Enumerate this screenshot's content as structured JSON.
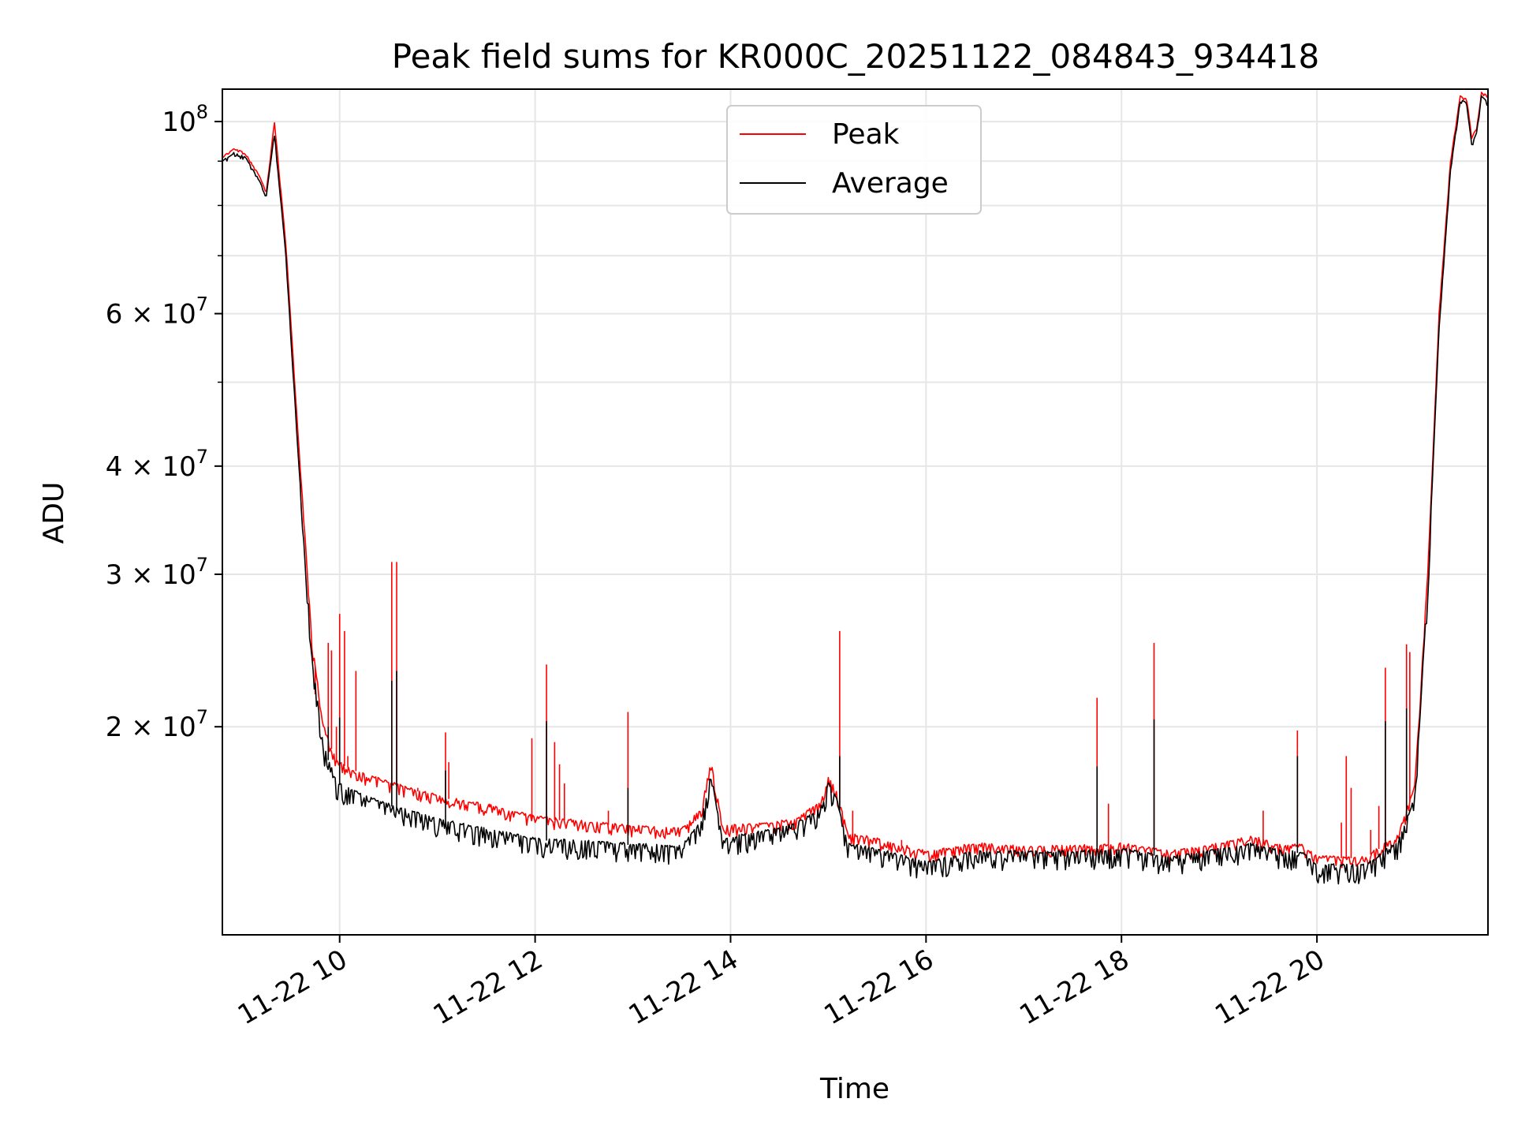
{
  "chart_data": {
    "type": "line",
    "title": "Peak field sums for KR000C_20251122_084843_934418",
    "xlabel": "Time",
    "ylabel": "ADU",
    "yscale": "log",
    "xlim": [
      "2025-11-22 08:48",
      "2025-11-22 21:45"
    ],
    "ylim": [
      11500000,
      109000000
    ],
    "grid": true,
    "legend_placement": "upper-center",
    "x_ticks": [
      {
        "value": "2025-11-22 10:00",
        "label": "11-22 10"
      },
      {
        "value": "2025-11-22 12:00",
        "label": "11-22 12"
      },
      {
        "value": "2025-11-22 14:00",
        "label": "11-22 14"
      },
      {
        "value": "2025-11-22 16:00",
        "label": "11-22 16"
      },
      {
        "value": "2025-11-22 18:00",
        "label": "11-22 18"
      },
      {
        "value": "2025-11-22 20:00",
        "label": "11-22 20"
      }
    ],
    "y_ticks": [
      {
        "value": 20000000,
        "mantissa": "2",
        "exp": "7"
      },
      {
        "value": 30000000,
        "mantissa": "3",
        "exp": "7"
      },
      {
        "value": 40000000,
        "mantissa": "4",
        "exp": "7"
      },
      {
        "value": 60000000,
        "mantissa": "6",
        "exp": "7"
      },
      {
        "value": 100000000,
        "mantissa": "",
        "exp": "8"
      }
    ],
    "y_minor_ticks": [
      50000000,
      70000000,
      80000000,
      90000000
    ],
    "series": [
      {
        "name": "Peak",
        "color": "#ff0000",
        "points": [
          [
            "2025-11-22 08:48",
            91000000
          ],
          [
            "2025-11-22 08:55",
            93000000
          ],
          [
            "2025-11-22 09:02",
            92000000
          ],
          [
            "2025-11-22 09:10",
            87000000
          ],
          [
            "2025-11-22 09:15",
            83000000
          ],
          [
            "2025-11-22 09:20",
            100000000
          ],
          [
            "2025-11-22 09:27",
            72000000
          ],
          [
            "2025-11-22 09:35",
            42000000
          ],
          [
            "2025-11-22 09:43",
            25000000
          ],
          [
            "2025-11-22 09:50",
            20000000
          ],
          [
            "2025-11-22 09:58",
            18200000
          ],
          [
            "2025-11-22 10:15",
            17600000
          ],
          [
            "2025-11-22 10:35",
            17100000
          ],
          [
            "2025-11-22 11:00",
            16600000
          ],
          [
            "2025-11-22 11:30",
            16200000
          ],
          [
            "2025-11-22 12:00",
            15700000
          ],
          [
            "2025-11-22 12:30",
            15500000
          ],
          [
            "2025-11-22 13:00",
            15300000
          ],
          [
            "2025-11-22 13:30",
            15200000
          ],
          [
            "2025-11-22 13:42",
            16000000
          ],
          [
            "2025-11-22 13:48",
            18200000
          ],
          [
            "2025-11-22 13:55",
            15300000
          ],
          [
            "2025-11-22 14:20",
            15400000
          ],
          [
            "2025-11-22 14:40",
            15600000
          ],
          [
            "2025-11-22 14:55",
            16300000
          ],
          [
            "2025-11-22 15:00",
            17400000
          ],
          [
            "2025-11-22 15:05",
            16800000
          ],
          [
            "2025-11-22 15:12",
            15000000
          ],
          [
            "2025-11-22 15:30",
            14800000
          ],
          [
            "2025-11-22 16:00",
            14300000
          ],
          [
            "2025-11-22 16:30",
            14600000
          ],
          [
            "2025-11-22 17:00",
            14500000
          ],
          [
            "2025-11-22 17:30",
            14500000
          ],
          [
            "2025-11-22 18:00",
            14600000
          ],
          [
            "2025-11-22 18:30",
            14300000
          ],
          [
            "2025-11-22 19:00",
            14600000
          ],
          [
            "2025-11-22 19:20",
            14900000
          ],
          [
            "2025-11-22 19:40",
            14500000
          ],
          [
            "2025-11-22 19:50",
            14600000
          ],
          [
            "2025-11-22 20:00",
            14100000
          ],
          [
            "2025-11-22 20:30",
            14100000
          ],
          [
            "2025-11-22 20:50",
            15000000
          ],
          [
            "2025-11-22 21:00",
            17000000
          ],
          [
            "2025-11-22 21:08",
            30000000
          ],
          [
            "2025-11-22 21:15",
            60000000
          ],
          [
            "2025-11-22 21:22",
            90000000
          ],
          [
            "2025-11-22 21:28",
            107000000
          ],
          [
            "2025-11-22 21:32",
            106000000
          ],
          [
            "2025-11-22 21:35",
            96000000
          ],
          [
            "2025-11-22 21:38",
            98000000
          ],
          [
            "2025-11-22 21:41",
            108000000
          ],
          [
            "2025-11-22 21:45",
            107000000
          ]
        ],
        "spikes": [
          [
            "2025-11-22 09:45",
            21800000
          ],
          [
            "2025-11-22 09:53",
            25000000
          ],
          [
            "2025-11-22 09:55",
            24500000
          ],
          [
            "2025-11-22 09:58",
            20000000
          ],
          [
            "2025-11-22 10:00",
            27000000
          ],
          [
            "2025-11-22 10:03",
            25800000
          ],
          [
            "2025-11-22 10:05",
            18500000
          ],
          [
            "2025-11-22 10:10",
            23200000
          ],
          [
            "2025-11-22 10:32",
            31000000
          ],
          [
            "2025-11-22 10:35",
            31000000
          ],
          [
            "2025-11-22 10:48",
            17000000
          ],
          [
            "2025-11-22 11:05",
            19700000
          ],
          [
            "2025-11-22 11:07",
            18200000
          ],
          [
            "2025-11-22 11:32",
            16300000
          ],
          [
            "2025-11-22 11:58",
            19400000
          ],
          [
            "2025-11-22 12:07",
            23600000
          ],
          [
            "2025-11-22 12:12",
            19200000
          ],
          [
            "2025-11-22 12:15",
            18100000
          ],
          [
            "2025-11-22 12:18",
            17200000
          ],
          [
            "2025-11-22 12:45",
            16000000
          ],
          [
            "2025-11-22 12:57",
            20800000
          ],
          [
            "2025-11-22 15:07",
            25800000
          ],
          [
            "2025-11-22 15:15",
            16000000
          ],
          [
            "2025-11-22 15:45",
            14800000
          ],
          [
            "2025-11-22 17:45",
            21600000
          ],
          [
            "2025-11-22 17:52",
            16300000
          ],
          [
            "2025-11-22 18:20",
            25000000
          ],
          [
            "2025-11-22 19:27",
            16000000
          ],
          [
            "2025-11-22 19:48",
            19800000
          ],
          [
            "2025-11-22 20:15",
            15500000
          ],
          [
            "2025-11-22 20:18",
            18500000
          ],
          [
            "2025-11-22 20:21",
            17000000
          ],
          [
            "2025-11-22 20:33",
            15200000
          ],
          [
            "2025-11-22 20:38",
            16200000
          ],
          [
            "2025-11-22 20:42",
            23400000
          ],
          [
            "2025-11-22 20:55",
            24900000
          ],
          [
            "2025-11-22 20:57",
            24400000
          ]
        ]
      },
      {
        "name": "Average",
        "color": "#000000",
        "points": [
          [
            "2025-11-22 08:48",
            90000000
          ],
          [
            "2025-11-22 08:55",
            92000000
          ],
          [
            "2025-11-22 09:02",
            91000000
          ],
          [
            "2025-11-22 09:10",
            86000000
          ],
          [
            "2025-11-22 09:15",
            82000000
          ],
          [
            "2025-11-22 09:20",
            97000000
          ],
          [
            "2025-11-22 09:27",
            70000000
          ],
          [
            "2025-11-22 09:35",
            40000000
          ],
          [
            "2025-11-22 09:43",
            24000000
          ],
          [
            "2025-11-22 09:50",
            19000000
          ],
          [
            "2025-11-22 09:58",
            17200000
          ],
          [
            "2025-11-22 10:15",
            16600000
          ],
          [
            "2025-11-22 10:35",
            16100000
          ],
          [
            "2025-11-22 11:00",
            15600000
          ],
          [
            "2025-11-22 11:30",
            15200000
          ],
          [
            "2025-11-22 12:00",
            14800000
          ],
          [
            "2025-11-22 12:30",
            14700000
          ],
          [
            "2025-11-22 13:00",
            14600000
          ],
          [
            "2025-11-22 13:30",
            14500000
          ],
          [
            "2025-11-22 13:42",
            15500000
          ],
          [
            "2025-11-22 13:48",
            17600000
          ],
          [
            "2025-11-22 13:55",
            14800000
          ],
          [
            "2025-11-22 14:20",
            15100000
          ],
          [
            "2025-11-22 14:40",
            15400000
          ],
          [
            "2025-11-22 14:55",
            16000000
          ],
          [
            "2025-11-22 15:00",
            17200000
          ],
          [
            "2025-11-22 15:05",
            16500000
          ],
          [
            "2025-11-22 15:12",
            14600000
          ],
          [
            "2025-11-22 15:30",
            14400000
          ],
          [
            "2025-11-22 16:00",
            13900000
          ],
          [
            "2025-11-22 16:30",
            14300000
          ],
          [
            "2025-11-22 17:00",
            14300000
          ],
          [
            "2025-11-22 17:30",
            14300000
          ],
          [
            "2025-11-22 18:00",
            14400000
          ],
          [
            "2025-11-22 18:30",
            14100000
          ],
          [
            "2025-11-22 19:00",
            14400000
          ],
          [
            "2025-11-22 19:20",
            14600000
          ],
          [
            "2025-11-22 19:40",
            14300000
          ],
          [
            "2025-11-22 19:50",
            14300000
          ],
          [
            "2025-11-22 20:00",
            13800000
          ],
          [
            "2025-11-22 20:30",
            13800000
          ],
          [
            "2025-11-22 20:50",
            14700000
          ],
          [
            "2025-11-22 21:00",
            16500000
          ],
          [
            "2025-11-22 21:08",
            29000000
          ],
          [
            "2025-11-22 21:15",
            58000000
          ],
          [
            "2025-11-22 21:22",
            88000000
          ],
          [
            "2025-11-22 21:28",
            106000000
          ],
          [
            "2025-11-22 21:32",
            105000000
          ],
          [
            "2025-11-22 21:35",
            94000000
          ],
          [
            "2025-11-22 21:38",
            97000000
          ],
          [
            "2025-11-22 21:41",
            107000000
          ],
          [
            "2025-11-22 21:45",
            105000000
          ]
        ],
        "spikes": [
          [
            "2025-11-22 09:53",
            20000000
          ],
          [
            "2025-11-22 10:00",
            20500000
          ],
          [
            "2025-11-22 10:32",
            22600000
          ],
          [
            "2025-11-22 10:35",
            23200000
          ],
          [
            "2025-11-22 11:05",
            17800000
          ],
          [
            "2025-11-22 12:07",
            20300000
          ],
          [
            "2025-11-22 12:57",
            17000000
          ],
          [
            "2025-11-22 15:07",
            18500000
          ],
          [
            "2025-11-22 17:45",
            18000000
          ],
          [
            "2025-11-22 18:20",
            20400000
          ],
          [
            "2025-11-22 19:48",
            18500000
          ],
          [
            "2025-11-22 20:42",
            20300000
          ],
          [
            "2025-11-22 20:55",
            21000000
          ]
        ]
      }
    ]
  }
}
